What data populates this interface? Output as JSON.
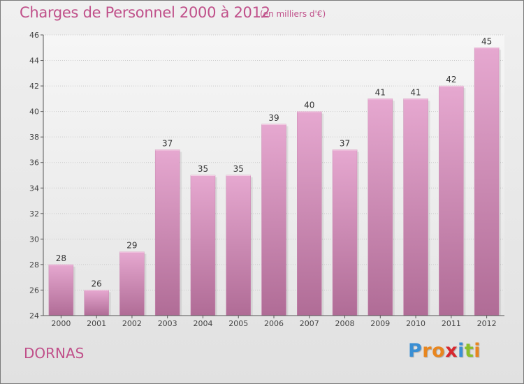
{
  "header": {
    "title": "Charges de Personnel 2000 à 2012",
    "subtitle": "(en milliers d'€)"
  },
  "footer": {
    "commune": "DORNAS",
    "logo": {
      "letters": [
        "P",
        "r",
        "o",
        "x",
        "i",
        "t",
        "i"
      ],
      "colors": [
        "#3a8fd4",
        "#e8861f",
        "#e8861f",
        "#d7282f",
        "#3a8fd4",
        "#8bbf2a",
        "#e8861f"
      ]
    }
  },
  "chart_data": {
    "type": "bar",
    "title": "Charges de Personnel 2000 à 2012",
    "subtitle": "(en milliers d'€)",
    "categories": [
      "2000",
      "2001",
      "2002",
      "2003",
      "2004",
      "2005",
      "2006",
      "2007",
      "2008",
      "2009",
      "2010",
      "2011",
      "2012"
    ],
    "values": [
      28,
      26,
      29,
      37,
      35,
      35,
      39,
      40,
      37,
      41,
      41,
      42,
      45
    ],
    "data_labels": [
      "28",
      "26",
      "29",
      "37",
      "35",
      "35",
      "39",
      "40",
      "37",
      "41",
      "41",
      "42",
      "45"
    ],
    "yticks": [
      "24",
      "26",
      "28",
      "30",
      "32",
      "34",
      "36",
      "38",
      "40",
      "42",
      "44",
      "46"
    ],
    "ylim": [
      24,
      46
    ],
    "grid": true,
    "bar_color": "#d898bf"
  }
}
